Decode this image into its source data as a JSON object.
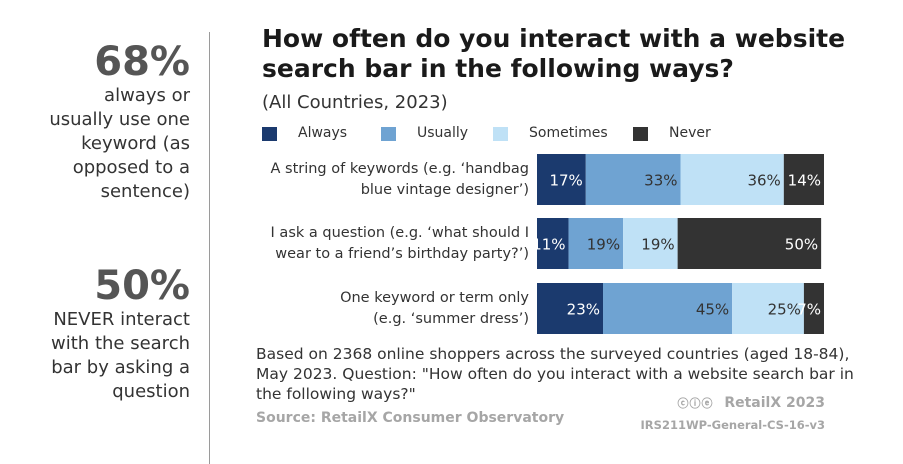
{
  "left_stats": [
    {
      "value": "68%",
      "lines": [
        "always or",
        "usually use one",
        "keyword (as",
        "opposed to a",
        "sentence)"
      ]
    },
    {
      "value": "50%",
      "lines": [
        "NEVER interact",
        "with the search",
        "bar by asking a",
        "question"
      ]
    }
  ],
  "chart_data": {
    "type": "bar",
    "orientation": "horizontal",
    "stacked": true,
    "title_lines": [
      "How often do you interact with a website",
      "search bar in the following ways?"
    ],
    "subtitle": "(All Countries, 2023)",
    "categories": [
      [
        "A string of keywords (e.g. ‘handbag",
        "blue vintage designer’)"
      ],
      [
        "I ask a question (e.g. ‘what should I",
        "wear to a friend’s birthday party?’)"
      ],
      [
        "One keyword or term only",
        "(e.g. ‘summer dress’)"
      ]
    ],
    "series": [
      {
        "name": "Always",
        "color": "#1b3a6e",
        "values": [
          17,
          11,
          23
        ],
        "labels": [
          "17%",
          "11%",
          "23%"
        ]
      },
      {
        "name": "Usually",
        "color": "#6fa3d2",
        "values": [
          33,
          19,
          45
        ],
        "labels": [
          "33%",
          "19%",
          "45%"
        ]
      },
      {
        "name": "Sometimes",
        "color": "#bfe1f6",
        "values": [
          36,
          19,
          25
        ],
        "labels": [
          "36%",
          "19%",
          "25%"
        ]
      },
      {
        "name": "Never",
        "color": "#333333",
        "values": [
          14,
          50,
          7
        ],
        "labels": [
          "14%",
          "50%",
          "7%"
        ]
      }
    ],
    "legend_position": "top",
    "grid": false
  },
  "footer": {
    "note": "Based on 2368 online shoppers across the surveyed countries (aged 18-84), May 2023. Question: \"How often do you interact with a website search bar in the following ways?\"",
    "source": "Source: RetailX Consumer Observatory",
    "cc_icon": "cc-by-nd-icon",
    "brand": "RetailX 2023",
    "code": "IRS211WP-General-CS-16-v3"
  }
}
